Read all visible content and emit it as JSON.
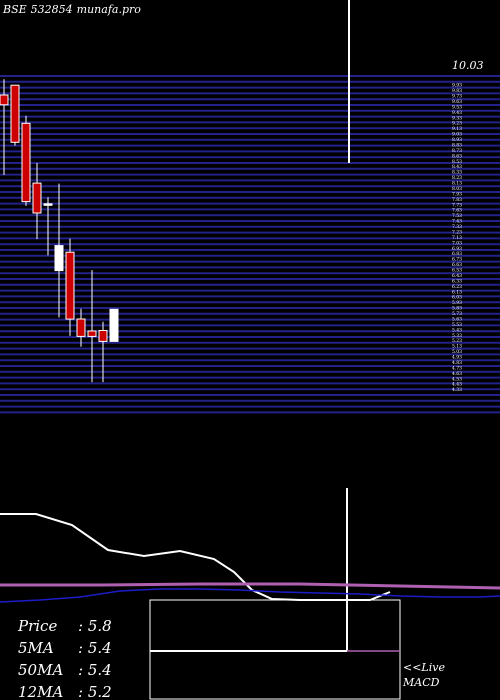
{
  "header": {
    "exchange": "BSE",
    "code": "532854",
    "site": "munafa.pro"
  },
  "price_label": "10.03",
  "stats": [
    {
      "label": "Price",
      "value": ": 5.8"
    },
    {
      "label": "5MA",
      "value": ": 5.4"
    },
    {
      "label": "50MA",
      "value": ": 5.4"
    },
    {
      "label": "12MA",
      "value": ": 5.2"
    }
  ],
  "macd_panel": {
    "live_label": "<<Live",
    "title": "MACD"
  },
  "colors": {
    "up": "#ffffff",
    "down": "#cc0000",
    "grid": "#22228a",
    "ma_line": "#ffffff",
    "macd_line": "#b060b0",
    "signal_line": "#1c1cc8"
  },
  "chart_data": {
    "type": "candlestick",
    "ylim": [
      3.8,
      10.2
    ],
    "candles": [
      {
        "open": 9.74,
        "high": 10.03,
        "low": 8.27,
        "close": 9.56
      },
      {
        "open": 9.92,
        "high": 9.92,
        "low": 8.81,
        "close": 8.87
      },
      {
        "open": 9.22,
        "high": 9.36,
        "low": 7.7,
        "close": 7.78
      },
      {
        "open": 8.12,
        "high": 8.49,
        "low": 7.09,
        "close": 7.57
      },
      {
        "open": 7.74,
        "high": 7.86,
        "low": 6.79,
        "close": 7.74
      },
      {
        "open": 6.51,
        "high": 8.11,
        "low": 5.65,
        "close": 6.97
      },
      {
        "open": 6.85,
        "high": 7.1,
        "low": 5.31,
        "close": 5.62
      },
      {
        "open": 5.62,
        "high": 5.81,
        "low": 5.11,
        "close": 5.3
      },
      {
        "open": 5.4,
        "high": 6.52,
        "low": 4.46,
        "close": 5.3
      },
      {
        "open": 5.41,
        "high": 5.57,
        "low": 4.46,
        "close": 5.21
      },
      {
        "open": 5.21,
        "high": 5.8,
        "low": 5.21,
        "close": 5.8
      }
    ],
    "price_ticks": [
      10.03,
      9.93,
      9.83,
      9.73,
      9.63,
      9.53,
      9.43,
      9.33,
      9.23,
      9.13,
      9.03,
      8.93,
      8.83,
      8.73,
      8.63,
      8.53,
      8.43,
      8.33,
      8.23,
      8.13,
      8.03,
      7.93,
      7.83,
      7.73,
      7.63,
      7.53,
      7.43,
      7.33,
      7.23,
      7.13,
      7.03,
      6.93,
      6.83,
      6.73,
      6.63,
      6.53,
      6.43,
      6.33,
      6.23,
      6.13,
      6.03,
      5.93,
      5.83,
      5.73,
      5.63,
      5.53,
      5.43,
      5.33,
      5.23,
      5.13,
      5.03,
      4.93,
      4.83,
      4.73,
      4.63,
      4.53,
      4.43,
      4.33
    ]
  }
}
